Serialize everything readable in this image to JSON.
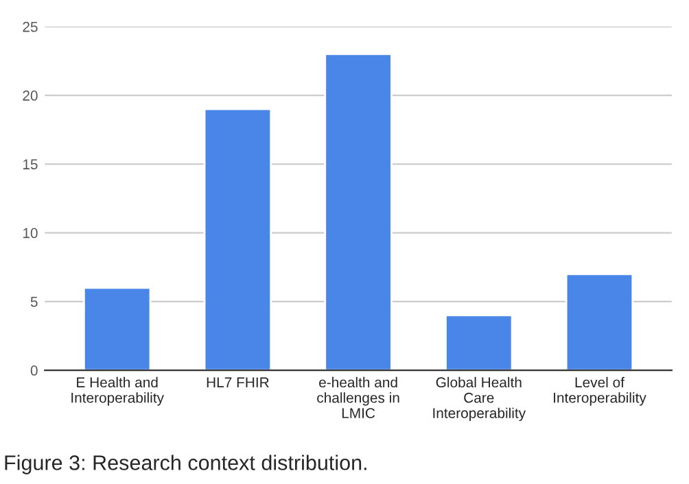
{
  "chart_data": {
    "type": "bar",
    "categories": [
      "E Health and\nInteroperability",
      "HL7 FHIR",
      "e-health and\nchallenges in\nLMIC",
      "Global Health\nCare\nInteroperability",
      "Level of\nInteroperability"
    ],
    "values": [
      6,
      19,
      23,
      4,
      7
    ],
    "color": "#4a86e8",
    "ylim": [
      0,
      25
    ],
    "yticks": [
      0,
      5,
      10,
      15,
      20,
      25
    ],
    "grid": "y",
    "annotations": [
      "Figure 3: Research context distribution."
    ]
  }
}
